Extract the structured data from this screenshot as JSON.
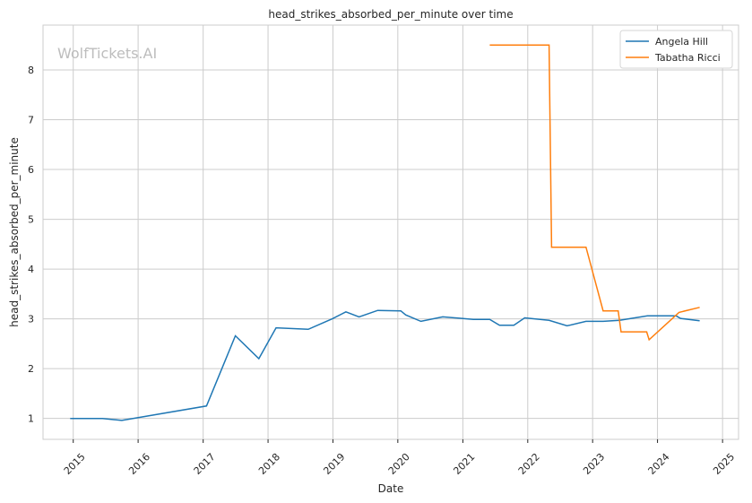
{
  "chart_data": {
    "type": "line",
    "title": "head_strikes_absorbed_per_minute over time",
    "xlabel": "Date",
    "ylabel": "head_strikes_absorbed_per_minute",
    "watermark": "WolfTickets.AI",
    "xlim": [
      "2014-07-15",
      "2025-04-01"
    ],
    "ylim": [
      0.58,
      8.9
    ],
    "x_ticks": [
      "2015",
      "2016",
      "2017",
      "2018",
      "2019",
      "2020",
      "2021",
      "2022",
      "2023",
      "2024",
      "2025"
    ],
    "y_ticks": [
      1,
      2,
      3,
      4,
      5,
      6,
      7,
      8
    ],
    "grid": true,
    "legend_placement": "top-right",
    "series": [
      {
        "name": "Angela Hill",
        "color": "#1f77b4",
        "x": [
          "2014-12-15",
          "2015-06-15",
          "2015-10-01",
          "2017-01-20",
          "2017-07-01",
          "2017-11-10",
          "2018-02-15",
          "2018-08-15",
          "2018-12-28",
          "2019-03-15",
          "2019-05-28",
          "2019-09-10",
          "2020-01-18",
          "2020-02-14",
          "2020-05-10",
          "2020-09-10",
          "2021-03-01",
          "2021-06-01",
          "2021-07-26",
          "2021-10-15",
          "2021-12-15",
          "2022-05-01",
          "2022-08-10",
          "2022-11-25",
          "2023-03-01",
          "2023-06-01",
          "2023-11-05",
          "2024-04-15",
          "2024-05-10",
          "2024-08-25"
        ],
        "y": [
          1.0,
          1.0,
          0.96,
          1.25,
          2.66,
          2.2,
          2.82,
          2.79,
          3.0,
          3.14,
          3.04,
          3.17,
          3.16,
          3.08,
          2.95,
          3.04,
          2.99,
          2.99,
          2.87,
          2.87,
          3.02,
          2.97,
          2.86,
          2.95,
          2.95,
          2.97,
          3.06,
          3.06,
          3.01,
          2.96
        ]
      },
      {
        "name": "Tabatha Ricci",
        "color": "#ff7f0e",
        "x": [
          "2021-06-01",
          "2022-05-01",
          "2022-05-15",
          "2022-11-25",
          "2023-03-01",
          "2023-05-25",
          "2023-06-10",
          "2023-11-01",
          "2023-11-15",
          "2024-05-01",
          "2024-08-25"
        ],
        "y": [
          8.5,
          8.5,
          4.44,
          4.44,
          3.16,
          3.16,
          2.74,
          2.74,
          2.58,
          3.13,
          3.23
        ]
      }
    ]
  }
}
